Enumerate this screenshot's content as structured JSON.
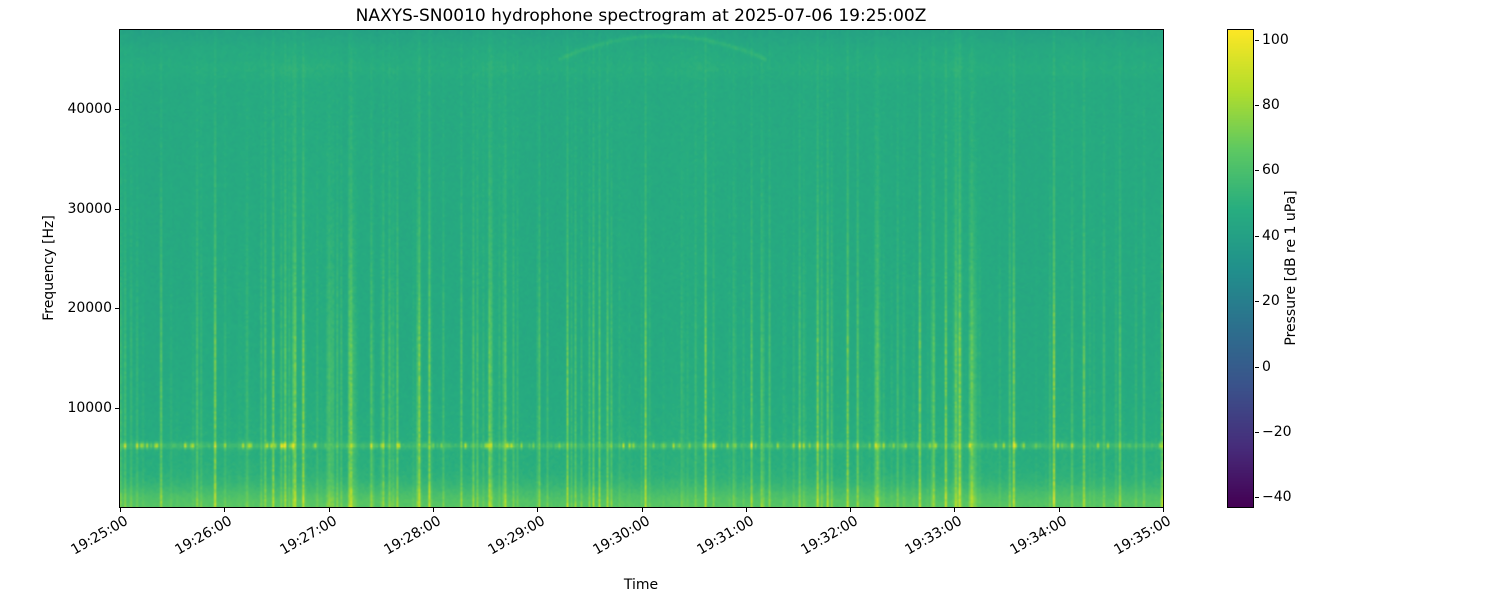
{
  "figure": {
    "background": "#ffffff"
  },
  "chart_data": {
    "type": "heatmap",
    "subtype": "spectrogram",
    "title": "NAXYS-SN0010 hydrophone spectrogram at 2025-07-06 19:25:00Z",
    "xlabel": "Time",
    "ylabel": "Frequency [Hz]",
    "x_tick_labels": [
      "19:25:00",
      "19:26:00",
      "19:27:00",
      "19:28:00",
      "19:29:00",
      "19:30:00",
      "19:31:00",
      "19:32:00",
      "19:33:00",
      "19:34:00",
      "19:35:00"
    ],
    "x_tick_rotation_deg": 30,
    "y_ticks": [
      10000,
      20000,
      30000,
      40000
    ],
    "y_tick_labels": [
      "10000",
      "20000",
      "30000",
      "40000"
    ],
    "ylim": [
      0,
      48000
    ],
    "time_span_seconds": 600,
    "grid": false,
    "legend": false,
    "colorbar": {
      "label": "Pressure [dB re 1 uPa]",
      "ticks": [
        100,
        80,
        60,
        40,
        20,
        0,
        -20,
        -40
      ],
      "tick_labels": [
        "100",
        "80",
        "60",
        "40",
        "20",
        "0",
        "−20",
        "−40"
      ],
      "vmin": -43,
      "vmax": 103,
      "colormap": "viridis",
      "position": "right"
    },
    "colormap_stops": [
      [
        0.0,
        68,
        1,
        84
      ],
      [
        0.125,
        71,
        45,
        123
      ],
      [
        0.25,
        59,
        82,
        139
      ],
      [
        0.375,
        45,
        112,
        142
      ],
      [
        0.5,
        33,
        145,
        140
      ],
      [
        0.625,
        40,
        174,
        128
      ],
      [
        0.75,
        94,
        201,
        98
      ],
      [
        0.875,
        180,
        222,
        44
      ],
      [
        1.0,
        253,
        231,
        37
      ]
    ],
    "signal_model": {
      "seed": 20250706,
      "f_max_hz": 48000,
      "base_db": 46,
      "noise_db": 2.6,
      "low_band": {
        "peak_db": 14,
        "width_hz": 2000
      },
      "broadband_clicks": {
        "max_db": 26,
        "upper_rolloff_hz": 16000
      },
      "tonal_6khz": {
        "center_hz": 6100,
        "bandwidth_hz": 300,
        "base_db": 7,
        "burst_db": 34
      },
      "high_band": {
        "center_hz": 44200,
        "db": 2.5
      },
      "surface_arc": {
        "t_start_frac": 0.42,
        "t_end_frac": 0.62,
        "peak_hz": 47500,
        "db": 7
      },
      "top_edge_darkening_db": 4.5
    }
  }
}
